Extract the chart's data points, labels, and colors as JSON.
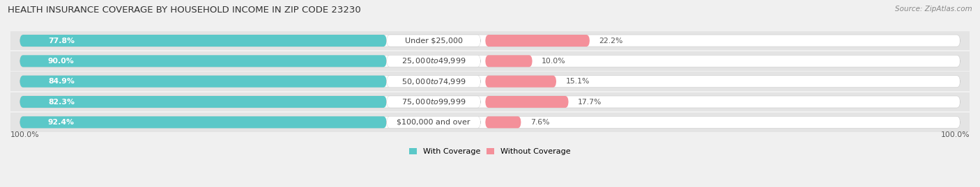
{
  "title": "HEALTH INSURANCE COVERAGE BY HOUSEHOLD INCOME IN ZIP CODE 23230",
  "source": "Source: ZipAtlas.com",
  "categories": [
    "Under $25,000",
    "$25,000 to $49,999",
    "$50,000 to $74,999",
    "$75,000 to $99,999",
    "$100,000 and over"
  ],
  "with_coverage": [
    77.8,
    90.0,
    84.9,
    82.3,
    92.4
  ],
  "without_coverage": [
    22.2,
    10.0,
    15.1,
    17.7,
    7.6
  ],
  "color_with": "#5BC8C8",
  "color_without": "#F4909A",
  "bg_color": "#f0f0f0",
  "bar_bg_color": "#ffffff",
  "row_bg_color": "#e8e8e8",
  "title_fontsize": 9.5,
  "label_fontsize": 8,
  "pct_fontsize": 7.8,
  "legend_fontsize": 8,
  "source_fontsize": 7.5
}
